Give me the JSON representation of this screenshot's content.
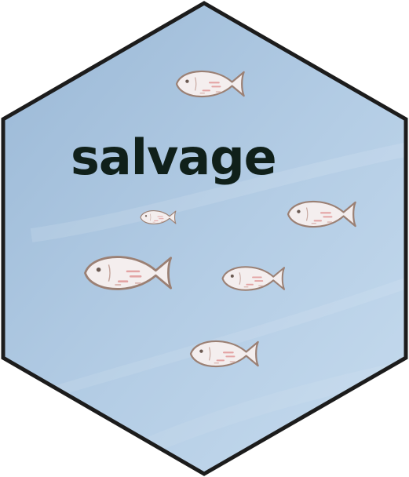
{
  "logo": {
    "title": "salvage",
    "icon": "fish-icon",
    "fish_count": 6,
    "colors": {
      "background_top": "#9ab8d6",
      "background_bottom": "#c6dbee",
      "border": "#1c1c1c",
      "text": "#10201a",
      "fish_body": "#f4eeee",
      "fish_outline": "#9b8074",
      "fish_marks": "#e3a4a4"
    }
  }
}
